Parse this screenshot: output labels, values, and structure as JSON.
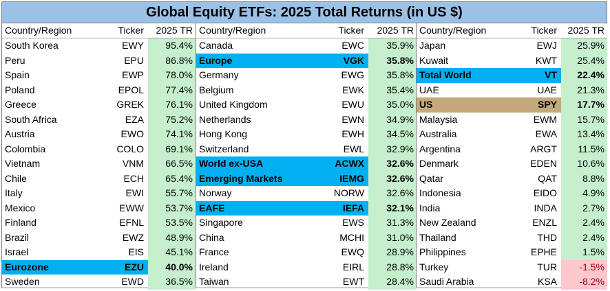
{
  "chart_data": {
    "type": "table",
    "title": "Global Equity ETFs: 2025 Total Returns (in US $)",
    "columns": [
      "Country/Region",
      "Ticker",
      "2025 TR"
    ],
    "panels": [
      {
        "rows": [
          {
            "name": "South Korea",
            "ticker": "EWY",
            "tr": "95.4%",
            "value": 95.4
          },
          {
            "name": "Peru",
            "ticker": "EPU",
            "tr": "86.8%",
            "value": 86.8
          },
          {
            "name": "Spain",
            "ticker": "EWP",
            "tr": "78.0%",
            "value": 78.0
          },
          {
            "name": "Poland",
            "ticker": "EPOL",
            "tr": "77.4%",
            "value": 77.4
          },
          {
            "name": "Greece",
            "ticker": "GREK",
            "tr": "76.1%",
            "value": 76.1
          },
          {
            "name": "South Africa",
            "ticker": "EZA",
            "tr": "75.2%",
            "value": 75.2
          },
          {
            "name": "Austria",
            "ticker": "EWO",
            "tr": "74.1%",
            "value": 74.1
          },
          {
            "name": "Colombia",
            "ticker": "COLO",
            "tr": "69.1%",
            "value": 69.1
          },
          {
            "name": "Vietnam",
            "ticker": "VNM",
            "tr": "66.5%",
            "value": 66.5
          },
          {
            "name": "Chile",
            "ticker": "ECH",
            "tr": "65.4%",
            "value": 65.4
          },
          {
            "name": "Italy",
            "ticker": "EWI",
            "tr": "55.7%",
            "value": 55.7
          },
          {
            "name": "Mexico",
            "ticker": "EWW",
            "tr": "53.7%",
            "value": 53.7
          },
          {
            "name": "Finland",
            "ticker": "EFNL",
            "tr": "53.5%",
            "value": 53.5
          },
          {
            "name": "Brazil",
            "ticker": "EWZ",
            "tr": "48.9%",
            "value": 48.9
          },
          {
            "name": "Israel",
            "ticker": "EIS",
            "tr": "45.1%",
            "value": 45.1
          },
          {
            "name": "Eurozone",
            "ticker": "EZU",
            "tr": "40.0%",
            "value": 40.0,
            "highlight": "blue"
          },
          {
            "name": "Sweden",
            "ticker": "EWD",
            "tr": "36.5%",
            "value": 36.5
          }
        ]
      },
      {
        "rows": [
          {
            "name": "Canada",
            "ticker": "EWC",
            "tr": "35.9%",
            "value": 35.9
          },
          {
            "name": "Europe",
            "ticker": "VGK",
            "tr": "35.8%",
            "value": 35.8,
            "highlight": "blue"
          },
          {
            "name": "Germany",
            "ticker": "EWG",
            "tr": "35.8%",
            "value": 35.8
          },
          {
            "name": "Belgium",
            "ticker": "EWK",
            "tr": "35.4%",
            "value": 35.4
          },
          {
            "name": "United Kingdom",
            "ticker": "EWU",
            "tr": "35.0%",
            "value": 35.0
          },
          {
            "name": "Netherlands",
            "ticker": "EWN",
            "tr": "34.9%",
            "value": 34.9
          },
          {
            "name": "Hong Kong",
            "ticker": "EWH",
            "tr": "34.5%",
            "value": 34.5
          },
          {
            "name": "Switzerland",
            "ticker": "EWL",
            "tr": "32.9%",
            "value": 32.9
          },
          {
            "name": "World ex-USA",
            "ticker": "ACWX",
            "tr": "32.6%",
            "value": 32.6,
            "highlight": "blue"
          },
          {
            "name": "Emerging Markets",
            "ticker": "IEMG",
            "tr": "32.6%",
            "value": 32.6,
            "highlight": "blue"
          },
          {
            "name": "Norway",
            "ticker": "NORW",
            "tr": "32.6%",
            "value": 32.6
          },
          {
            "name": "EAFE",
            "ticker": "IEFA",
            "tr": "32.1%",
            "value": 32.1,
            "highlight": "blue"
          },
          {
            "name": "Singapore",
            "ticker": "EWS",
            "tr": "31.3%",
            "value": 31.3
          },
          {
            "name": "China",
            "ticker": "MCHI",
            "tr": "31.0%",
            "value": 31.0
          },
          {
            "name": "France",
            "ticker": "EWQ",
            "tr": "28.9%",
            "value": 28.9
          },
          {
            "name": "Ireland",
            "ticker": "EIRL",
            "tr": "28.8%",
            "value": 28.8
          },
          {
            "name": "Taiwan",
            "ticker": "EWT",
            "tr": "28.4%",
            "value": 28.4
          }
        ]
      },
      {
        "rows": [
          {
            "name": "Japan",
            "ticker": "EWJ",
            "tr": "25.9%",
            "value": 25.9
          },
          {
            "name": "Kuwait",
            "ticker": "KWT",
            "tr": "25.4%",
            "value": 25.4
          },
          {
            "name": "Total World",
            "ticker": "VT",
            "tr": "22.4%",
            "value": 22.4,
            "highlight": "blue"
          },
          {
            "name": "UAE",
            "ticker": "UAE",
            "tr": "21.3%",
            "value": 21.3
          },
          {
            "name": "US",
            "ticker": "SPY",
            "tr": "17.7%",
            "value": 17.7,
            "highlight": "tan"
          },
          {
            "name": "Malaysia",
            "ticker": "EWM",
            "tr": "15.7%",
            "value": 15.7
          },
          {
            "name": "Australia",
            "ticker": "EWA",
            "tr": "13.4%",
            "value": 13.4
          },
          {
            "name": "Argentina",
            "ticker": "ARGT",
            "tr": "11.5%",
            "value": 11.5
          },
          {
            "name": "Denmark",
            "ticker": "EDEN",
            "tr": "10.6%",
            "value": 10.6
          },
          {
            "name": "Qatar",
            "ticker": "QAT",
            "tr": "8.8%",
            "value": 8.8
          },
          {
            "name": "Indonesia",
            "ticker": "EIDO",
            "tr": "4.9%",
            "value": 4.9
          },
          {
            "name": "India",
            "ticker": "INDA",
            "tr": "2.7%",
            "value": 2.7
          },
          {
            "name": "New Zealand",
            "ticker": "ENZL",
            "tr": "2.4%",
            "value": 2.4
          },
          {
            "name": "Thailand",
            "ticker": "THD",
            "tr": "2.4%",
            "value": 2.4
          },
          {
            "name": "Philippines",
            "ticker": "EPHE",
            "tr": "1.5%",
            "value": 1.5
          },
          {
            "name": "Turkey",
            "ticker": "TUR",
            "tr": "-1.5%",
            "value": -1.5
          },
          {
            "name": "Saudi Arabia",
            "ticker": "KSA",
            "tr": "-8.2%",
            "value": -8.2
          }
        ]
      }
    ],
    "colors": {
      "title_bg": "#9bc2e6",
      "positive_bg": "#c6efce",
      "negative_bg": "#ffc7ce",
      "negative_text": "#9c0006",
      "highlight_blue": "#00b0f0",
      "highlight_tan": "#c4a97b"
    }
  }
}
